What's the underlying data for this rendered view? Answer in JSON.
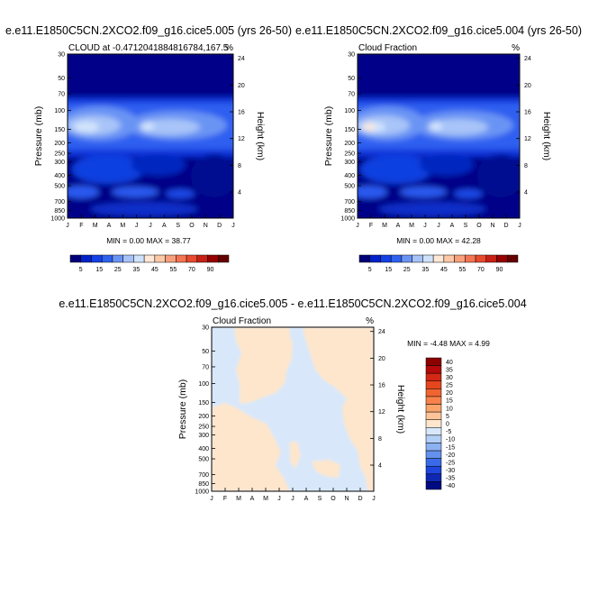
{
  "chart_data": [
    {
      "type": "heatmap",
      "title": "e.e11.E1850C5CN.2XCO2.f09_g16.cice5.005 (yrs 26-50)",
      "subtitle_left": "CLOUD at -0.4712041884816784,167.5",
      "subtitle_right": "%",
      "ylabel": "Pressure (mb)",
      "ylabel_right": "Height (km)",
      "x_ticks": [
        "J",
        "F",
        "M",
        "A",
        "M",
        "J",
        "J",
        "A",
        "S",
        "O",
        "N",
        "D",
        "J"
      ],
      "y_ticks": [
        "30",
        "50",
        "70",
        "100",
        "150",
        "200",
        "250",
        "300",
        "400",
        "500",
        "700",
        "850",
        "1000"
      ],
      "y_ticks_right": [
        "24",
        "20",
        "16",
        "12",
        "8",
        "4"
      ],
      "stats": "MIN =  0.00 MAX =  38.77",
      "colorbar_labels": [
        "5",
        "15",
        "25",
        "35",
        "45",
        "55",
        "70",
        "90"
      ],
      "colorbar_colors": [
        "#000078",
        "#0022c8",
        "#1440e6",
        "#2e62ee",
        "#6a94f4",
        "#a6c2f8",
        "#cfe2fc",
        "#ffe8d6",
        "#fcc8a8",
        "#f8a07c",
        "#f47552",
        "#e84a2e",
        "#c82014",
        "#960000",
        "#640000"
      ]
    },
    {
      "type": "heatmap",
      "title": "e.e11.E1850C5CN.2XCO2.f09_g16.cice5.004 (yrs 26-50)",
      "subtitle_left": "Cloud Fraction",
      "subtitle_right": "%",
      "ylabel": "Pressure (mb)",
      "ylabel_right": "Height (km)",
      "x_ticks": [
        "J",
        "F",
        "M",
        "A",
        "M",
        "J",
        "J",
        "A",
        "S",
        "O",
        "N",
        "D",
        "J"
      ],
      "y_ticks": [
        "30",
        "50",
        "70",
        "100",
        "150",
        "200",
        "250",
        "300",
        "400",
        "500",
        "700",
        "850",
        "1000"
      ],
      "y_ticks_right": [
        "24",
        "20",
        "16",
        "12",
        "8",
        "4"
      ],
      "stats": "MIN =  0.00 MAX =  42.28",
      "colorbar_labels": [
        "5",
        "15",
        "25",
        "35",
        "45",
        "55",
        "70",
        "90"
      ],
      "colorbar_colors": [
        "#000078",
        "#0022c8",
        "#1440e6",
        "#2e62ee",
        "#6a94f4",
        "#a6c2f8",
        "#cfe2fc",
        "#ffe8d6",
        "#fcc8a8",
        "#f8a07c",
        "#f47552",
        "#e84a2e",
        "#c82014",
        "#960000",
        "#640000"
      ]
    },
    {
      "type": "heatmap",
      "title": "e.e11.E1850C5CN.2XCO2.f09_g16.cice5.005 - e.e11.E1850C5CN.2XCO2.f09_g16.cice5.004",
      "subtitle_left": "Cloud Fraction",
      "subtitle_right": "%",
      "ylabel": "Pressure (mb)",
      "ylabel_right": "Height (km)",
      "x_ticks": [
        "J",
        "F",
        "M",
        "A",
        "M",
        "J",
        "J",
        "A",
        "S",
        "O",
        "N",
        "D",
        "J"
      ],
      "y_ticks": [
        "30",
        "50",
        "70",
        "100",
        "150",
        "200",
        "250",
        "300",
        "400",
        "500",
        "700",
        "850",
        "1000"
      ],
      "y_ticks_right": [
        "24",
        "20",
        "16",
        "12",
        "8",
        "4"
      ],
      "stats": "MIN = -4.48 MAX =   4.99",
      "colorbar_labels": [
        "40",
        "35",
        "30",
        "25",
        "20",
        "15",
        "10",
        "5",
        "0",
        "-5",
        "-10",
        "-15",
        "-20",
        "-25",
        "-30",
        "-35",
        "-40"
      ],
      "colorbar_colors": [
        "#8c0000",
        "#b40a0a",
        "#d22814",
        "#e6461e",
        "#f06432",
        "#f7824a",
        "#faa46c",
        "#fcc498",
        "#fde6cc",
        "#d8e8fa",
        "#b4cff6",
        "#8cb2f2",
        "#6490ee",
        "#3a6ae8",
        "#1e46dc",
        "#0e28b4",
        "#000a82"
      ]
    }
  ]
}
